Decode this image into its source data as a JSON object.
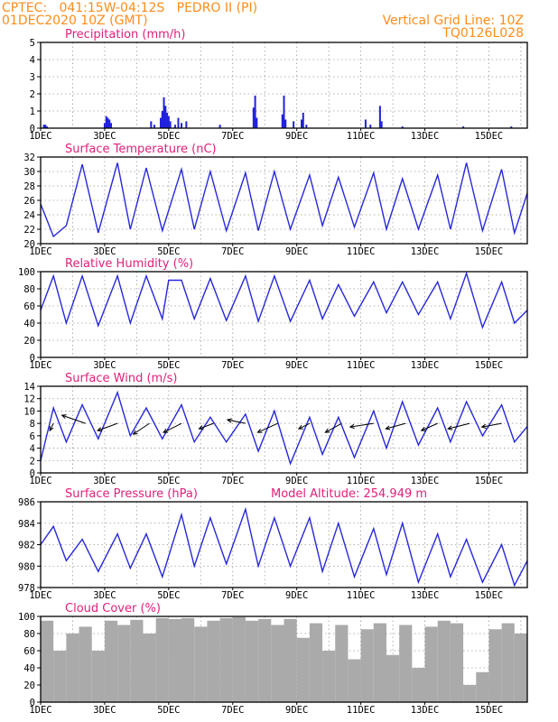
{
  "header": {
    "left_line1": "CPTEC:   041:15W-04:12S   PEDRO II (PI)",
    "left_line2": "01DEC2020 10Z (GMT)",
    "right_line1": "Vertical Grid Line: 10Z",
    "right_line2": "TQ0126L028"
  },
  "colors": {
    "header": "#ff8c1a",
    "title": "#e0207a",
    "series": "#2828dc",
    "bars": "#2020e0",
    "cloud": "#aaaaaa",
    "arrows": "#000000"
  },
  "x_axis": {
    "labels": [
      "1DEC",
      "3DEC",
      "5DEC",
      "7DEC",
      "9DEC",
      "11DEC",
      "13DEC",
      "15DEC"
    ],
    "label_days": [
      1,
      3,
      5,
      7,
      9,
      11,
      13,
      15
    ],
    "range_days": [
      1,
      16.2
    ],
    "grid_days": [
      2,
      3,
      4,
      5,
      6,
      7,
      8,
      9,
      10,
      11,
      12,
      13,
      14,
      15,
      16
    ]
  },
  "chart_data": [
    {
      "type": "bar",
      "title": "Precipitation (mm/h)",
      "ylim": [
        0,
        5
      ],
      "yticks": [
        0,
        1,
        2,
        3,
        4,
        5
      ],
      "x": [
        1.1,
        1.15,
        1.2,
        3.0,
        3.05,
        3.1,
        3.15,
        3.2,
        4.45,
        4.55,
        4.75,
        4.8,
        4.85,
        4.9,
        4.95,
        5.0,
        5.05,
        5.2,
        5.3,
        5.4,
        5.55,
        6.6,
        7.65,
        7.7,
        7.75,
        8.55,
        8.6,
        8.65,
        8.9,
        9.15,
        9.2,
        9.3,
        11.15,
        11.3,
        11.6,
        11.65,
        12.3,
        14.2,
        15.7
      ],
      "values": [
        0.2,
        0.2,
        0.1,
        0.3,
        0.7,
        0.6,
        0.5,
        0.3,
        0.4,
        0.2,
        0.6,
        1.0,
        1.8,
        1.3,
        0.9,
        0.7,
        0.4,
        0.2,
        0.6,
        0.3,
        0.4,
        0.2,
        1.2,
        1.9,
        0.6,
        0.8,
        1.9,
        0.5,
        0.4,
        0.5,
        0.9,
        0.2,
        0.5,
        0.2,
        1.3,
        0.4,
        0.1,
        0.1,
        0.1
      ]
    },
    {
      "type": "line",
      "title": "Surface Temperature (nC)",
      "ylim": [
        20,
        32
      ],
      "yticks": [
        20,
        22,
        24,
        26,
        28,
        30,
        32
      ],
      "x": [
        1.0,
        1.4,
        1.8,
        2.3,
        2.8,
        3.4,
        3.8,
        4.3,
        4.8,
        5.4,
        5.8,
        6.3,
        6.8,
        7.4,
        7.8,
        8.3,
        8.8,
        9.4,
        9.8,
        10.3,
        10.8,
        11.4,
        11.8,
        12.3,
        12.8,
        13.4,
        13.8,
        14.3,
        14.8,
        15.4,
        15.8,
        16.2
      ],
      "values": [
        25.5,
        21.0,
        22.5,
        31.0,
        21.5,
        31.2,
        22.0,
        30.5,
        21.8,
        30.3,
        22.0,
        30.0,
        21.8,
        29.8,
        21.8,
        30.0,
        22.0,
        29.5,
        22.5,
        29.2,
        22.3,
        29.8,
        22.0,
        29.0,
        22.0,
        29.5,
        22.0,
        31.2,
        21.8,
        30.3,
        21.5,
        27.0
      ]
    },
    {
      "type": "line",
      "title": "Relative Humidity (%)",
      "ylim": [
        0,
        100
      ],
      "yticks": [
        0,
        20,
        40,
        60,
        80,
        100
      ],
      "x": [
        1.0,
        1.4,
        1.8,
        2.3,
        2.8,
        3.4,
        3.8,
        4.3,
        4.8,
        5.0,
        5.4,
        5.8,
        6.3,
        6.8,
        7.4,
        7.8,
        8.3,
        8.8,
        9.4,
        9.8,
        10.3,
        10.8,
        11.4,
        11.8,
        12.3,
        12.8,
        13.4,
        13.8,
        14.3,
        14.8,
        15.4,
        15.8,
        16.2
      ],
      "values": [
        55,
        95,
        40,
        95,
        37,
        95,
        40,
        95,
        45,
        90,
        90,
        45,
        92,
        43,
        95,
        42,
        95,
        42,
        90,
        45,
        85,
        48,
        88,
        52,
        88,
        50,
        88,
        45,
        98,
        35,
        88,
        40,
        55
      ]
    },
    {
      "type": "line",
      "title": "Surface Wind (m/s)",
      "ylim": [
        0,
        14
      ],
      "yticks": [
        0,
        2,
        4,
        6,
        8,
        10,
        12,
        14
      ],
      "x": [
        1.0,
        1.4,
        1.8,
        2.3,
        2.8,
        3.4,
        3.8,
        4.3,
        4.8,
        5.4,
        5.8,
        6.3,
        6.8,
        7.4,
        7.8,
        8.3,
        8.8,
        9.4,
        9.8,
        10.3,
        10.8,
        11.4,
        11.8,
        12.3,
        12.8,
        13.4,
        13.8,
        14.3,
        14.8,
        15.4,
        15.8,
        16.2
      ],
      "values": [
        2.0,
        10.5,
        5.0,
        11.0,
        5.5,
        13.0,
        6.0,
        10.5,
        5.5,
        11.0,
        5.0,
        9.0,
        5.0,
        9.5,
        3.5,
        10.0,
        1.5,
        9.0,
        3.0,
        9.0,
        2.5,
        10.0,
        4.0,
        11.5,
        4.5,
        10.5,
        5.0,
        11.5,
        6.0,
        11.0,
        5.0,
        7.5
      ],
      "arrow_row_value": 8,
      "arrow_days": [
        1.4,
        2.4,
        3.4,
        4.4,
        5.4,
        6.4,
        7.4,
        8.4,
        9.4,
        10.4,
        11.4,
        12.4,
        13.4,
        14.4,
        15.4
      ],
      "arrow_dx": [
        -4,
        -26,
        -22,
        -18,
        -20,
        -16,
        -20,
        -22,
        -12,
        -18,
        -26,
        -22,
        -18,
        -24,
        -22
      ],
      "arrow_dy": [
        8,
        -9,
        8,
        12,
        10,
        6,
        -4,
        10,
        6,
        10,
        4,
        6,
        8,
        6,
        4
      ]
    },
    {
      "type": "line",
      "title": "Surface Pressure (hPa)",
      "ylim": [
        978,
        986
      ],
      "yticks": [
        978,
        980,
        982,
        984,
        986
      ],
      "x": [
        1.0,
        1.4,
        1.8,
        2.3,
        2.8,
        3.4,
        3.8,
        4.3,
        4.8,
        5.4,
        5.8,
        6.3,
        6.8,
        7.4,
        7.8,
        8.3,
        8.8,
        9.4,
        9.8,
        10.3,
        10.8,
        11.4,
        11.8,
        12.3,
        12.8,
        13.4,
        13.8,
        14.3,
        14.8,
        15.4,
        15.8,
        16.2
      ],
      "values": [
        982.0,
        983.7,
        980.5,
        982.5,
        979.5,
        983.0,
        979.8,
        983.0,
        979.0,
        984.8,
        980.0,
        984.5,
        980.2,
        985.3,
        980.0,
        984.5,
        980.0,
        984.5,
        979.5,
        984.0,
        979.0,
        983.5,
        979.2,
        984.0,
        978.5,
        983.0,
        979.0,
        982.5,
        978.5,
        982.0,
        978.2,
        980.5
      ],
      "annotation": "Model Altitude: 254.949 m"
    },
    {
      "type": "bar",
      "title": "Cloud Cover (%)",
      "ylim": [
        0,
        100
      ],
      "yticks": [
        0,
        20,
        40,
        60,
        80,
        100
      ],
      "x": [
        1.0,
        1.4,
        1.8,
        2.2,
        2.6,
        3.0,
        3.4,
        3.8,
        4.2,
        4.6,
        5.0,
        5.4,
        5.8,
        6.2,
        6.6,
        7.0,
        7.4,
        7.8,
        8.2,
        8.6,
        9.0,
        9.4,
        9.8,
        10.2,
        10.6,
        11.0,
        11.4,
        11.8,
        12.2,
        12.6,
        13.0,
        13.4,
        13.8,
        14.2,
        14.6,
        15.0,
        15.4,
        15.8,
        16.2
      ],
      "values": [
        95,
        60,
        80,
        88,
        60,
        95,
        90,
        96,
        80,
        98,
        97,
        98,
        88,
        95,
        98,
        99,
        95,
        97,
        90,
        97,
        75,
        92,
        60,
        90,
        50,
        85,
        92,
        55,
        90,
        40,
        88,
        95,
        92,
        20,
        35,
        85,
        92,
        80,
        85
      ]
    }
  ]
}
